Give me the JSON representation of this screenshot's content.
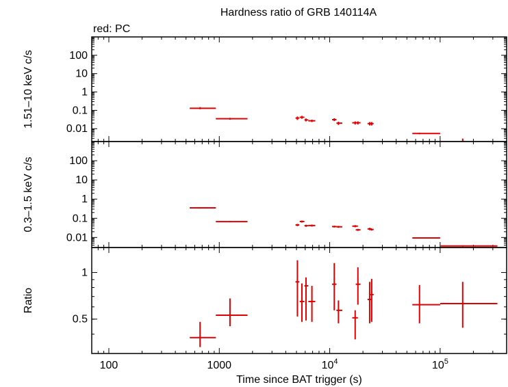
{
  "title": "Hardness ratio of GRB 140114A",
  "legend_text": "red: PC",
  "colors": {
    "data": "#e00000",
    "axis": "#000000",
    "background": "#ffffff"
  },
  "chart_data": {
    "type": "scatter",
    "x_scale": "log",
    "xlabel": "Time since BAT trigger (s)",
    "xlim": [
      70,
      400000
    ],
    "x_ticks": [
      {
        "value": 100,
        "base": "100",
        "exp": ""
      },
      {
        "value": 1000,
        "base": "1000",
        "exp": ""
      },
      {
        "value": 10000,
        "base": "10",
        "exp": "4"
      },
      {
        "value": 100000,
        "base": "10",
        "exp": "5"
      }
    ],
    "panels": [
      {
        "id": "hard",
        "ylabel": "1.51–10 keV c/s",
        "y_scale": "log",
        "ylim": [
          0.002,
          1000
        ],
        "y_ticks": [
          {
            "value": 100,
            "label": "100"
          },
          {
            "value": 10,
            "label": "10"
          },
          {
            "value": 1,
            "label": "1"
          },
          {
            "value": 0.1,
            "label": "0.1"
          },
          {
            "value": 0.01,
            "label": "0.01"
          }
        ],
        "points": [
          {
            "x": 670,
            "xlo": 540,
            "xhi": 930,
            "y": 0.13,
            "ylo": 0.115,
            "yhi": 0.15
          },
          {
            "x": 1250,
            "xlo": 930,
            "xhi": 1800,
            "y": 0.035,
            "ylo": 0.031,
            "yhi": 0.039
          },
          {
            "x": 5100,
            "xlo": 4900,
            "xhi": 5300,
            "y": 0.038,
            "ylo": 0.03,
            "yhi": 0.046
          },
          {
            "x": 5600,
            "xlo": 5350,
            "xhi": 5900,
            "y": 0.042,
            "ylo": 0.035,
            "yhi": 0.05
          },
          {
            "x": 6100,
            "xlo": 5900,
            "xhi": 6400,
            "y": 0.03,
            "ylo": 0.025,
            "yhi": 0.036
          },
          {
            "x": 6900,
            "xlo": 6400,
            "xhi": 7400,
            "y": 0.027,
            "ylo": 0.023,
            "yhi": 0.031
          },
          {
            "x": 11000,
            "xlo": 10500,
            "xhi": 11500,
            "y": 0.031,
            "ylo": 0.026,
            "yhi": 0.037
          },
          {
            "x": 12000,
            "xlo": 11500,
            "xhi": 13000,
            "y": 0.02,
            "ylo": 0.016,
            "yhi": 0.024
          },
          {
            "x": 17000,
            "xlo": 16000,
            "xhi": 18000,
            "y": 0.021,
            "ylo": 0.017,
            "yhi": 0.025
          },
          {
            "x": 18000,
            "xlo": 17200,
            "xhi": 19000,
            "y": 0.021,
            "ylo": 0.017,
            "yhi": 0.025
          },
          {
            "x": 23000,
            "xlo": 22000,
            "xhi": 24000,
            "y": 0.019,
            "ylo": 0.015,
            "yhi": 0.023
          },
          {
            "x": 24000,
            "xlo": 23200,
            "xhi": 25000,
            "y": 0.019,
            "ylo": 0.015,
            "yhi": 0.023
          },
          {
            "x": 65000,
            "xlo": 56000,
            "xhi": 100000,
            "y": 0.0055,
            "ylo": 0.005,
            "yhi": 0.006
          },
          {
            "x": 160000,
            "xlo": 158000,
            "xhi": 162000,
            "y": 0.0025,
            "ylo": 0.0021,
            "yhi": 0.0029
          }
        ]
      },
      {
        "id": "soft",
        "ylabel": "0.3–1.5 keV c/s",
        "y_scale": "log",
        "ylim": [
          0.003,
          1000
        ],
        "y_ticks": [
          {
            "value": 100,
            "label": "100"
          },
          {
            "value": 10,
            "label": "10"
          },
          {
            "value": 1,
            "label": "1"
          },
          {
            "value": 0.1,
            "label": "0.1"
          },
          {
            "value": 0.01,
            "label": "0.01"
          }
        ],
        "points": [
          {
            "x": 670,
            "xlo": 540,
            "xhi": 930,
            "y": 0.35,
            "ylo": 0.32,
            "yhi": 0.38
          },
          {
            "x": 1250,
            "xlo": 930,
            "xhi": 1800,
            "y": 0.067,
            "ylo": 0.062,
            "yhi": 0.072
          },
          {
            "x": 5100,
            "xlo": 4900,
            "xhi": 5300,
            "y": 0.045,
            "ylo": 0.039,
            "yhi": 0.051
          },
          {
            "x": 5600,
            "xlo": 5350,
            "xhi": 5900,
            "y": 0.068,
            "ylo": 0.06,
            "yhi": 0.076
          },
          {
            "x": 6100,
            "xlo": 5900,
            "xhi": 6400,
            "y": 0.041,
            "ylo": 0.036,
            "yhi": 0.046
          },
          {
            "x": 6900,
            "xlo": 6400,
            "xhi": 7400,
            "y": 0.042,
            "ylo": 0.037,
            "yhi": 0.047
          },
          {
            "x": 11000,
            "xlo": 10500,
            "xhi": 11500,
            "y": 0.037,
            "ylo": 0.033,
            "yhi": 0.041
          },
          {
            "x": 12000,
            "xlo": 11500,
            "xhi": 13000,
            "y": 0.036,
            "ylo": 0.032,
            "yhi": 0.04
          },
          {
            "x": 17000,
            "xlo": 16000,
            "xhi": 18000,
            "y": 0.039,
            "ylo": 0.034,
            "yhi": 0.044
          },
          {
            "x": 18000,
            "xlo": 17200,
            "xhi": 19000,
            "y": 0.025,
            "ylo": 0.022,
            "yhi": 0.028
          },
          {
            "x": 23000,
            "xlo": 22000,
            "xhi": 24000,
            "y": 0.028,
            "ylo": 0.024,
            "yhi": 0.032
          },
          {
            "x": 24000,
            "xlo": 23200,
            "xhi": 25000,
            "y": 0.026,
            "ylo": 0.023,
            "yhi": 0.029
          },
          {
            "x": 65000,
            "xlo": 56000,
            "xhi": 100000,
            "y": 0.0095,
            "ylo": 0.0088,
            "yhi": 0.0102
          },
          {
            "x": 160000,
            "xlo": 100000,
            "xhi": 330000,
            "y": 0.0036,
            "ylo": 0.0033,
            "yhi": 0.0039
          }
        ]
      },
      {
        "id": "ratio",
        "ylabel": "Ratio",
        "y_scale": "log",
        "ylim": [
          0.3,
          1.45
        ],
        "y_ticks": [
          {
            "value": 1,
            "label": "1"
          },
          {
            "value": 0.5,
            "label": "0.5"
          }
        ],
        "points": [
          {
            "x": 670,
            "xlo": 540,
            "xhi": 930,
            "y": 0.38,
            "ylo": 0.33,
            "yhi": 0.48
          },
          {
            "x": 1250,
            "xlo": 930,
            "xhi": 1800,
            "y": 0.53,
            "ylo": 0.45,
            "yhi": 0.68
          },
          {
            "x": 5100,
            "xlo": 4900,
            "xhi": 5300,
            "y": 0.87,
            "ylo": 0.52,
            "yhi": 1.2
          },
          {
            "x": 5600,
            "xlo": 5350,
            "xhi": 5900,
            "y": 0.65,
            "ylo": 0.48,
            "yhi": 0.85
          },
          {
            "x": 6100,
            "xlo": 5900,
            "xhi": 6400,
            "y": 0.82,
            "ylo": 0.49,
            "yhi": 0.93
          },
          {
            "x": 6900,
            "xlo": 6400,
            "xhi": 7400,
            "y": 0.65,
            "ylo": 0.48,
            "yhi": 0.82
          },
          {
            "x": 11000,
            "xlo": 10500,
            "xhi": 11500,
            "y": 0.84,
            "ylo": 0.57,
            "yhi": 1.15
          },
          {
            "x": 12000,
            "xlo": 11500,
            "xhi": 13000,
            "y": 0.57,
            "ylo": 0.47,
            "yhi": 0.66
          },
          {
            "x": 17000,
            "xlo": 16000,
            "xhi": 18000,
            "y": 0.51,
            "ylo": 0.37,
            "yhi": 0.57
          },
          {
            "x": 18000,
            "xlo": 17200,
            "xhi": 19000,
            "y": 0.84,
            "ylo": 0.62,
            "yhi": 1.08
          },
          {
            "x": 23000,
            "xlo": 22000,
            "xhi": 24000,
            "y": 0.67,
            "ylo": 0.47,
            "yhi": 0.87
          },
          {
            "x": 24000,
            "xlo": 23200,
            "xhi": 25000,
            "y": 0.72,
            "ylo": 0.48,
            "yhi": 0.91
          },
          {
            "x": 65000,
            "xlo": 56000,
            "xhi": 100000,
            "y": 0.62,
            "ylo": 0.47,
            "yhi": 0.83
          },
          {
            "x": 160000,
            "xlo": 100000,
            "xhi": 330000,
            "y": 0.63,
            "ylo": 0.44,
            "yhi": 0.87
          }
        ]
      }
    ]
  }
}
